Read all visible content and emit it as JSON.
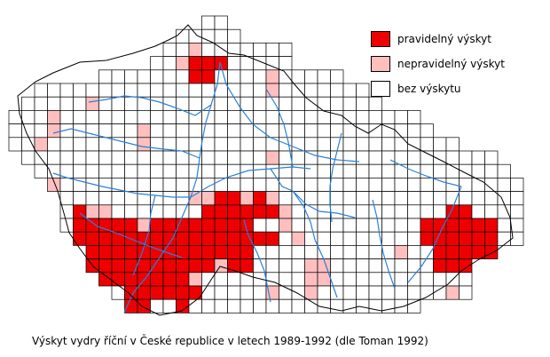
{
  "legend": {
    "regular": {
      "label": "pravidelný výskyt",
      "color": "#ee0000"
    },
    "irregular": {
      "label": "nepravidelný výskyt",
      "color": "#ffbfbf"
    },
    "none": {
      "label": "bez výskytu",
      "color": "#ffffff"
    }
  },
  "caption": "Výskyt vydry říční v České republice v letech 1989-1992 (dle Toman 1992)",
  "colors": {
    "river": "#2a7fd8",
    "border": "#000000",
    "grid": "#000000"
  }
}
